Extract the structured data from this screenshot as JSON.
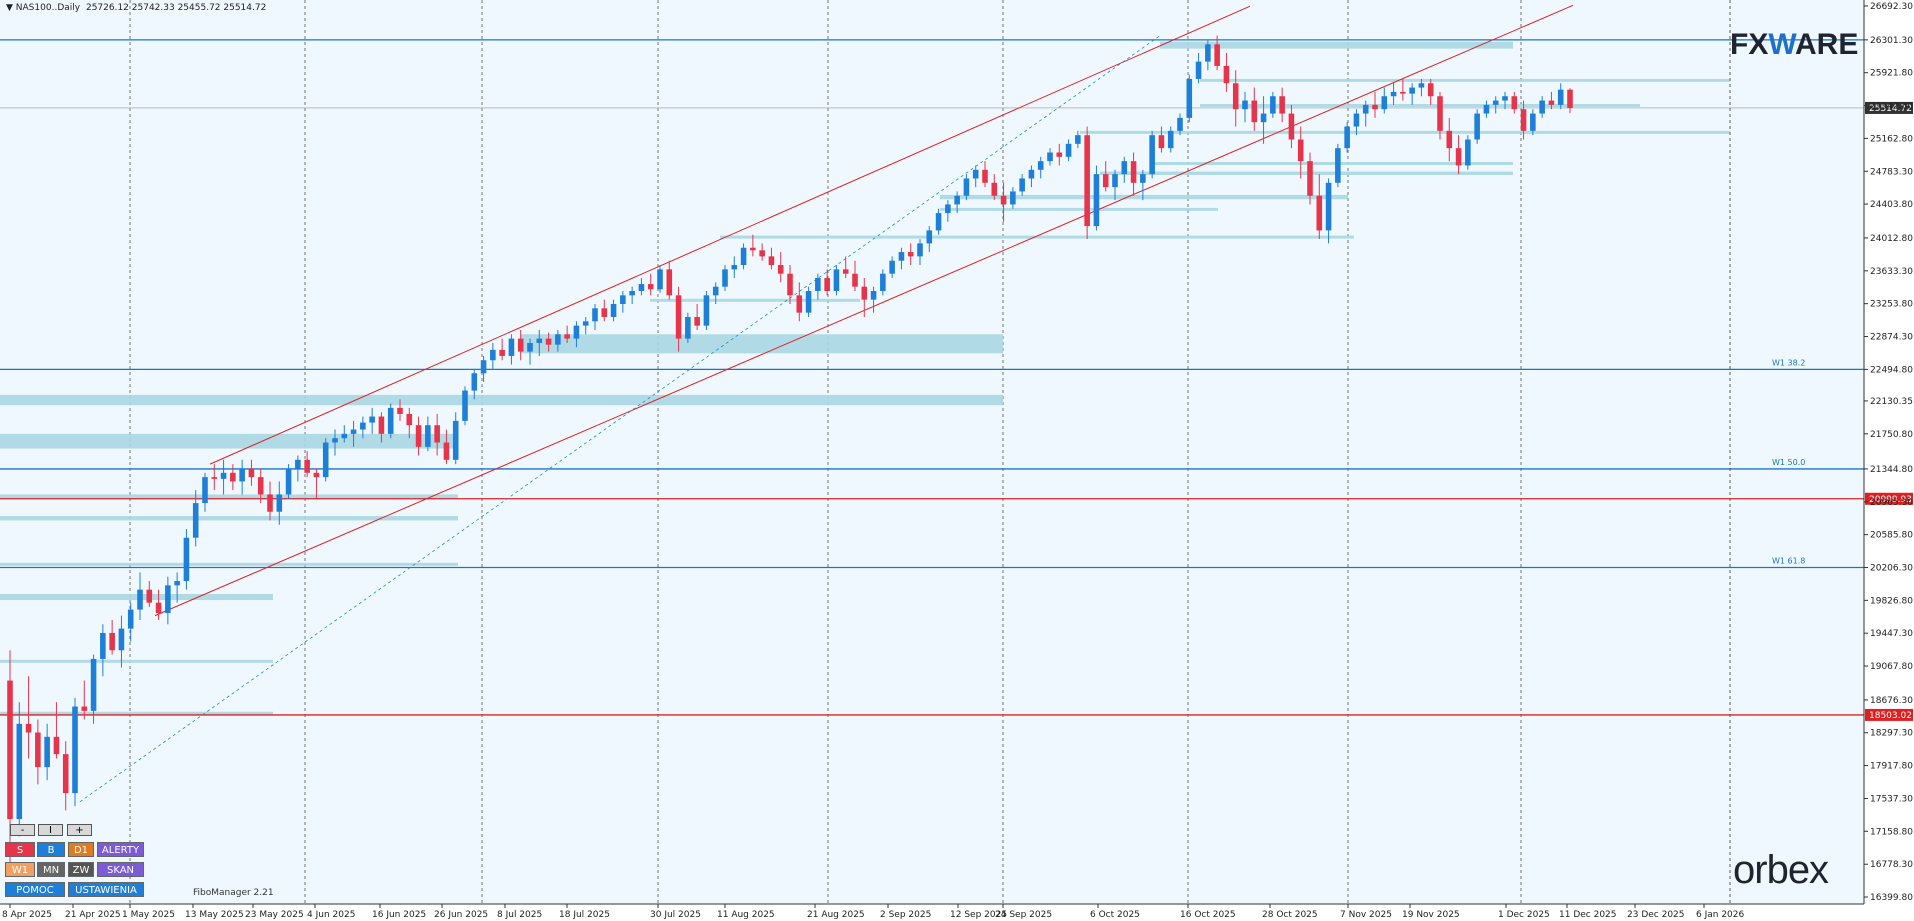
{
  "header": {
    "arrow": "▼",
    "symbol": "NAS100..",
    "timeframe": "Daily",
    "ohlc": "25726.12 25742.33 25455.72 25514.72"
  },
  "colors": {
    "background": "#f0f8ff",
    "bull": "#1e7fd8",
    "bear": "#e8344a",
    "zone": "#a9d6e3",
    "fib_line": "#1a75c9",
    "red_line": "#e02020",
    "channel": "#e02020",
    "grid": "#555555"
  },
  "buttons": {
    "zoom": [
      "-",
      "I",
      "+"
    ],
    "row1": [
      {
        "label": "S",
        "color": "#e8344a"
      },
      {
        "label": "B",
        "color": "#1e7fd8"
      },
      {
        "label": "D1",
        "color": "#e07b20"
      },
      {
        "label": "ALERTY",
        "color": "#7b5bd6"
      }
    ],
    "row2": [
      {
        "label": "W1",
        "color": "#f0a060"
      },
      {
        "label": "MN",
        "color": "#666666"
      },
      {
        "label": "ZW",
        "color": "#555555"
      },
      {
        "label": "SKAN",
        "color": "#7b5bd6"
      }
    ],
    "row3": [
      {
        "label": "POMOC",
        "color": "#1e7fd8"
      },
      {
        "label": "USTAWIENIA",
        "color": "#1e7fd8"
      }
    ]
  },
  "watermarks": {
    "fiboman": "FiboManager 2.21",
    "fxware_a": "FX",
    "fxware_b": "W",
    "fxware_c": "ARE",
    "orbex": "orbex"
  },
  "chart_data": {
    "type": "candlestick",
    "symbol": "NAS100",
    "timeframe": "Daily",
    "y_range": [
      16399.8,
      26692.3
    ],
    "y_ticks": [
      "26692.30",
      "26301.30",
      "25921.80",
      "25542.30",
      "25162.80",
      "24783.30",
      "24403.80",
      "24012.80",
      "23633.30",
      "23253.80",
      "22874.30",
      "22494.80",
      "22130.35",
      "21750.80",
      "21344.80",
      "20965.30",
      "20585.80",
      "20206.30",
      "19826.80",
      "19447.30",
      "19067.80",
      "18676.30",
      "18297.30",
      "17917.80",
      "17537.30",
      "17158.80",
      "16778.30",
      "16399.80"
    ],
    "x_ticks": [
      "8 Apr 2025",
      "21 Apr 2025",
      "1 May 2025",
      "13 May 2025",
      "23 May 2025",
      "4 Jun 2025",
      "16 Jun 2025",
      "26 Jun 2025",
      "8 Jul 2025",
      "18 Jul 2025",
      "30 Jul 2025",
      "11 Aug 2025",
      "21 Aug 2025",
      "2 Sep 2025",
      "12 Sep 2025",
      "24 Sep 2025",
      "6 Oct 2025",
      "16 Oct 2025",
      "28 Oct 2025",
      "7 Nov 2025",
      "19 Nov 2025",
      "1 Dec 2025",
      "11 Dec 2025",
      "23 Dec 2025",
      "6 Jan 2026"
    ],
    "current_price_label": "25514.72",
    "horizontal_lines": [
      {
        "label": "W1 38.2",
        "price": 22494.8,
        "color": "#1a75c9"
      },
      {
        "label": "W1 50.0",
        "price": 21344.8,
        "color": "#1a75c9"
      },
      {
        "label": "W1 61.8",
        "price": 20206.3,
        "color": "#1a75c9"
      },
      {
        "label": "",
        "price": 26301.3,
        "color": "#1a75c9"
      },
      {
        "label": "20999.93",
        "price": 20999.93,
        "color": "#e02020"
      },
      {
        "label": "18503.02",
        "price": 18503.02,
        "color": "#e02020"
      }
    ],
    "candles": [
      [
        18900,
        19250,
        16800,
        17300
      ],
      [
        17300,
        18650,
        17100,
        18400
      ],
      [
        18400,
        18950,
        18000,
        18300
      ],
      [
        18300,
        18450,
        17700,
        17900
      ],
      [
        17900,
        18400,
        17750,
        18250
      ],
      [
        18250,
        18650,
        18000,
        18050
      ],
      [
        18050,
        18200,
        17400,
        17600
      ],
      [
        17600,
        18700,
        17450,
        18600
      ],
      [
        18600,
        18900,
        18450,
        18550
      ],
      [
        18550,
        19200,
        18400,
        19150
      ],
      [
        19150,
        19550,
        18950,
        19450
      ],
      [
        19450,
        19600,
        19200,
        19250
      ],
      [
        19250,
        19650,
        19050,
        19500
      ],
      [
        19500,
        19800,
        19350,
        19720
      ],
      [
        19720,
        20150,
        19600,
        19950
      ],
      [
        19950,
        20050,
        19750,
        19800
      ],
      [
        19800,
        19950,
        19600,
        19680
      ],
      [
        19680,
        20100,
        19550,
        20000
      ],
      [
        20000,
        20150,
        19800,
        20050
      ],
      [
        20050,
        20650,
        19950,
        20550
      ],
      [
        20550,
        21100,
        20450,
        20950
      ],
      [
        20950,
        21300,
        20850,
        21250
      ],
      [
        21250,
        21400,
        21100,
        21230
      ],
      [
        21230,
        21450,
        21050,
        21300
      ],
      [
        21300,
        21400,
        21100,
        21200
      ],
      [
        21200,
        21450,
        21050,
        21350
      ],
      [
        21350,
        21450,
        21150,
        21250
      ],
      [
        21250,
        21350,
        20950,
        21050
      ],
      [
        21050,
        21200,
        20750,
        20850
      ],
      [
        20850,
        21200,
        20700,
        21050
      ],
      [
        21050,
        21400,
        21000,
        21350
      ],
      [
        21350,
        21500,
        21200,
        21450
      ],
      [
        21450,
        21550,
        21250,
        21300
      ],
      [
        21300,
        21350,
        21000,
        21250
      ],
      [
        21250,
        21700,
        21200,
        21650
      ],
      [
        21650,
        21800,
        21500,
        21700
      ],
      [
        21700,
        21850,
        21650,
        21750
      ],
      [
        21750,
        21900,
        21600,
        21800
      ],
      [
        21800,
        21950,
        21700,
        21880
      ],
      [
        21880,
        22050,
        21750,
        21950
      ],
      [
        21950,
        22000,
        21650,
        21750
      ],
      [
        21750,
        22100,
        21700,
        22050
      ],
      [
        22050,
        22150,
        21900,
        21980
      ],
      [
        21980,
        22050,
        21700,
        21850
      ],
      [
        21850,
        21950,
        21500,
        21600
      ],
      [
        21600,
        21950,
        21550,
        21850
      ],
      [
        21850,
        21980,
        21500,
        21650
      ],
      [
        21650,
        21800,
        21400,
        21450
      ],
      [
        21450,
        22000,
        21400,
        21900
      ],
      [
        21900,
        22300,
        21850,
        22250
      ],
      [
        22250,
        22500,
        22150,
        22450
      ],
      [
        22450,
        22650,
        22350,
        22600
      ],
      [
        22600,
        22800,
        22500,
        22720
      ],
      [
        22720,
        22850,
        22600,
        22650
      ],
      [
        22650,
        22900,
        22550,
        22850
      ],
      [
        22850,
        22950,
        22600,
        22700
      ],
      [
        22700,
        22850,
        22550,
        22800
      ],
      [
        22800,
        22950,
        22650,
        22850
      ],
      [
        22850,
        22920,
        22700,
        22780
      ],
      [
        22780,
        22950,
        22700,
        22900
      ],
      [
        22900,
        23000,
        22800,
        22850
      ],
      [
        22850,
        23050,
        22750,
        23000
      ],
      [
        23000,
        23100,
        22900,
        23050
      ],
      [
        23050,
        23250,
        22950,
        23200
      ],
      [
        23200,
        23300,
        23050,
        23100
      ],
      [
        23100,
        23300,
        23050,
        23250
      ],
      [
        23250,
        23400,
        23150,
        23350
      ],
      [
        23350,
        23450,
        23250,
        23400
      ],
      [
        23400,
        23550,
        23350,
        23480
      ],
      [
        23480,
        23600,
        23350,
        23420
      ],
      [
        23420,
        23700,
        23380,
        23650
      ],
      [
        23650,
        23750,
        23300,
        23350
      ],
      [
        23350,
        23450,
        22700,
        22850
      ],
      [
        22850,
        23150,
        22800,
        23100
      ],
      [
        23100,
        23250,
        22950,
        23000
      ],
      [
        23000,
        23400,
        22950,
        23350
      ],
      [
        23350,
        23500,
        23250,
        23450
      ],
      [
        23450,
        23700,
        23400,
        23650
      ],
      [
        23650,
        23800,
        23550,
        23700
      ],
      [
        23700,
        23950,
        23650,
        23900
      ],
      [
        23900,
        24050,
        23800,
        23870
      ],
      [
        23870,
        23950,
        23750,
        23800
      ],
      [
        23800,
        23900,
        23650,
        23700
      ],
      [
        23700,
        23850,
        23500,
        23600
      ],
      [
        23600,
        23700,
        23250,
        23350
      ],
      [
        23350,
        23500,
        23050,
        23150
      ],
      [
        23150,
        23450,
        23100,
        23400
      ],
      [
        23400,
        23600,
        23300,
        23550
      ],
      [
        23550,
        23650,
        23350,
        23400
      ],
      [
        23400,
        23700,
        23350,
        23650
      ],
      [
        23650,
        23800,
        23550,
        23600
      ],
      [
        23600,
        23750,
        23400,
        23450
      ],
      [
        23450,
        23550,
        23100,
        23300
      ],
      [
        23300,
        23450,
        23150,
        23400
      ],
      [
        23400,
        23650,
        23350,
        23600
      ],
      [
        23600,
        23800,
        23550,
        23750
      ],
      [
        23750,
        23900,
        23650,
        23850
      ],
      [
        23850,
        23950,
        23700,
        23800
      ],
      [
        23800,
        24000,
        23700,
        23950
      ],
      [
        23950,
        24150,
        23850,
        24100
      ],
      [
        24100,
        24350,
        24050,
        24300
      ],
      [
        24300,
        24450,
        24200,
        24400
      ],
      [
        24400,
        24550,
        24300,
        24500
      ],
      [
        24500,
        24750,
        24450,
        24700
      ],
      [
        24700,
        24850,
        24600,
        24800
      ],
      [
        24800,
        24900,
        24600,
        24650
      ],
      [
        24650,
        24750,
        24450,
        24500
      ],
      [
        24500,
        24650,
        24200,
        24400
      ],
      [
        24400,
        24600,
        24350,
        24550
      ],
      [
        24550,
        24750,
        24500,
        24700
      ],
      [
        24700,
        24850,
        24600,
        24800
      ],
      [
        24800,
        24950,
        24700,
        24900
      ],
      [
        24900,
        25050,
        24850,
        25000
      ],
      [
        25000,
        25100,
        24850,
        24950
      ],
      [
        24950,
        25150,
        24900,
        25100
      ],
      [
        25100,
        25250,
        25050,
        25200
      ],
      [
        25200,
        25300,
        24000,
        24150
      ],
      [
        24150,
        24850,
        24100,
        24750
      ],
      [
        24750,
        24900,
        24550,
        24600
      ],
      [
        24600,
        24800,
        24450,
        24750
      ],
      [
        24750,
        24950,
        24650,
        24900
      ],
      [
        24900,
        25000,
        24500,
        24650
      ],
      [
        24650,
        24800,
        24450,
        24750
      ],
      [
        24750,
        25250,
        24700,
        25200
      ],
      [
        25200,
        25300,
        25000,
        25050
      ],
      [
        25050,
        25300,
        25000,
        25250
      ],
      [
        25250,
        25450,
        25200,
        25400
      ],
      [
        25400,
        25900,
        25350,
        25850
      ],
      [
        25850,
        26150,
        25800,
        26050
      ],
      [
        26050,
        26300,
        25950,
        26250
      ],
      [
        26250,
        26350,
        25950,
        26000
      ],
      [
        26000,
        26150,
        25700,
        25800
      ],
      [
        25800,
        25950,
        25300,
        25500
      ],
      [
        25500,
        25700,
        25350,
        25600
      ],
      [
        25600,
        25750,
        25250,
        25350
      ],
      [
        25350,
        25650,
        25100,
        25450
      ],
      [
        25450,
        25700,
        25400,
        25650
      ],
      [
        25650,
        25750,
        25350,
        25450
      ],
      [
        25450,
        25550,
        25050,
        25150
      ],
      [
        25150,
        25300,
        24700,
        24900
      ],
      [
        24900,
        25000,
        24400,
        24500
      ],
      [
        24500,
        24750,
        24000,
        24100
      ],
      [
        24100,
        24700,
        23950,
        24650
      ],
      [
        24650,
        25100,
        24600,
        25050
      ],
      [
        25050,
        25350,
        25000,
        25300
      ],
      [
        25300,
        25500,
        25200,
        25450
      ],
      [
        25450,
        25600,
        25300,
        25550
      ],
      [
        25550,
        25700,
        25400,
        25500
      ],
      [
        25500,
        25750,
        25450,
        25650
      ],
      [
        25650,
        25800,
        25550,
        25700
      ],
      [
        25700,
        25850,
        25600,
        25680
      ],
      [
        25680,
        25800,
        25550,
        25750
      ],
      [
        25750,
        25850,
        25650,
        25800
      ],
      [
        25800,
        25850,
        25550,
        25650
      ],
      [
        25650,
        25700,
        25150,
        25250
      ],
      [
        25250,
        25400,
        24900,
        25050
      ],
      [
        25050,
        25200,
        24750,
        24850
      ],
      [
        24850,
        25200,
        24800,
        25150
      ],
      [
        25150,
        25500,
        25100,
        25450
      ],
      [
        25450,
        25600,
        25400,
        25550
      ],
      [
        25550,
        25650,
        25450,
        25600
      ],
      [
        25600,
        25700,
        25500,
        25650
      ],
      [
        25650,
        25700,
        25450,
        25500
      ],
      [
        25500,
        25600,
        25150,
        25250
      ],
      [
        25250,
        25500,
        25200,
        25450
      ],
      [
        25450,
        25650,
        25400,
        25600
      ],
      [
        25600,
        25700,
        25500,
        25550
      ],
      [
        25550,
        25800,
        25500,
        25726
      ],
      [
        25726,
        25742,
        25455,
        25514
      ]
    ]
  }
}
